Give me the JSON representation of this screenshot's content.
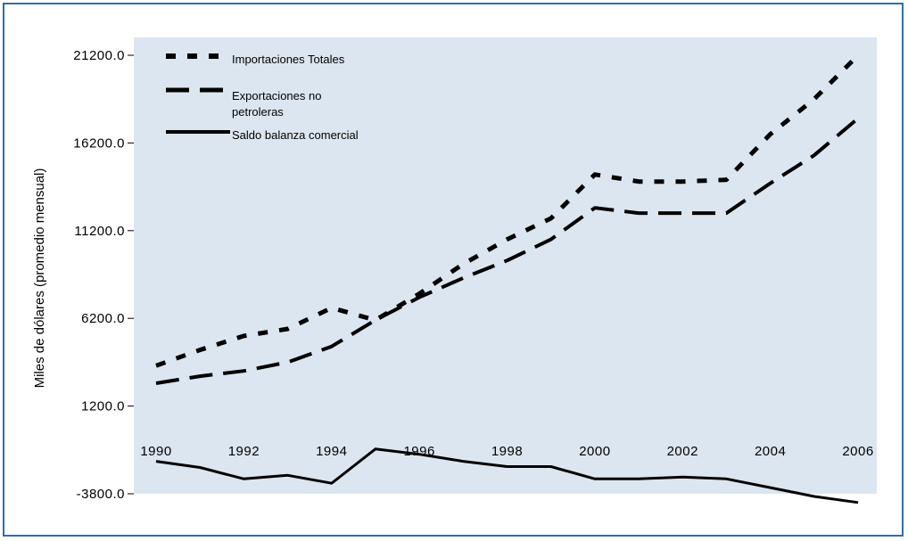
{
  "chart_data": {
    "type": "line",
    "title": "",
    "xlabel": "",
    "ylabel": "Miles de dólares (promedio mensual)",
    "ylim": [
      -3800,
      21200
    ],
    "xlim": [
      1990,
      2006
    ],
    "grid": false,
    "legend_position": "top-left",
    "background": "#dce6f1",
    "y_ticks": [
      21200,
      16200,
      11200,
      6200,
      1200,
      -3800
    ],
    "y_tick_labels": [
      "21200.0",
      "16200.0",
      "11200.0",
      "6200.0",
      "1200.0",
      "-3800.0"
    ],
    "x_ticks": [
      1990,
      1992,
      1994,
      1996,
      1998,
      2000,
      2002,
      2004,
      2006
    ],
    "x_tick_labels": [
      "1990",
      "1992",
      "1994",
      "1996",
      "1998",
      "2000",
      "2002",
      "2004",
      "2006"
    ],
    "x": [
      1990,
      1991,
      1992,
      1993,
      1994,
      1995,
      1996,
      1997,
      1998,
      1999,
      2000,
      2001,
      2002,
      2003,
      2004,
      2005,
      2006
    ],
    "series": [
      {
        "name": "Importaciones Totales",
        "style": "dotted",
        "color": "#000000",
        "values": [
          3500,
          4400,
          5200,
          5600,
          6800,
          6100,
          7600,
          9300,
          10700,
          11900,
          14400,
          14000,
          14000,
          14100,
          16700,
          18700,
          21200
        ]
      },
      {
        "name": "Exportaciones no petroleras",
        "style": "dashed",
        "color": "#000000",
        "values": [
          2500,
          2900,
          3200,
          3700,
          4600,
          6100,
          7400,
          8500,
          9500,
          10700,
          12500,
          12200,
          12200,
          12200,
          13900,
          15500,
          17600
        ]
      },
      {
        "name": "Saldo balanza comercial",
        "style": "solid",
        "color": "#000000",
        "values": [
          -1950,
          -2300,
          -2950,
          -2750,
          -3200,
          -1250,
          -1550,
          -1950,
          -2250,
          -2250,
          -2950,
          -2950,
          -2850,
          -2950,
          -3450,
          -3950,
          -4300
        ]
      }
    ]
  }
}
